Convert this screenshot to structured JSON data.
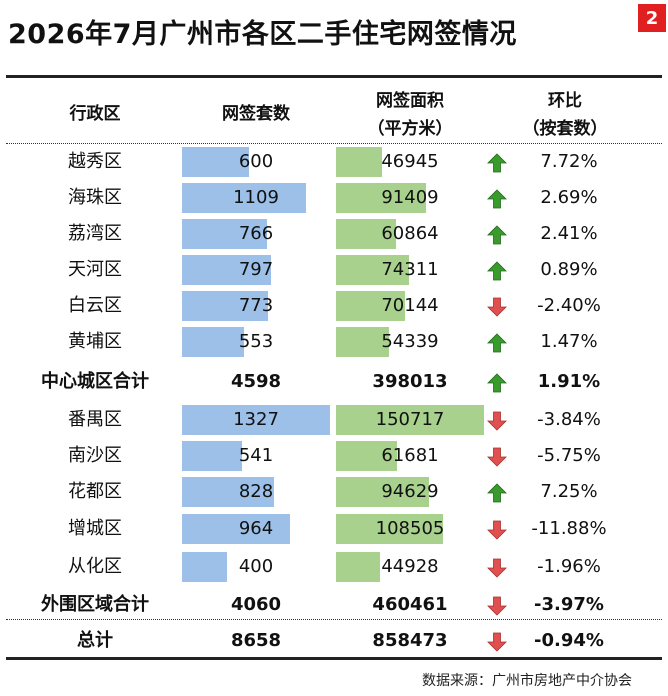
{
  "title": "2026年7月广州市各区二手住宅网签情况",
  "page_number": "2",
  "headers": {
    "district": "行政区",
    "count": "网签套数",
    "area_line1": "网签面积",
    "area_line2": "（平方米）",
    "mom_line1": "环比",
    "mom_line2": "（按套数）"
  },
  "colors": {
    "count_bar": "#9cc0e8",
    "area_bar": "#a9d18e",
    "up_arrow": "#3a9a2e",
    "down_arrow": "#e05050"
  },
  "scale": {
    "count_max": 1327,
    "area_max": 150717
  },
  "rows": [
    {
      "name": "越秀区",
      "count": "600",
      "area": "46945",
      "mom": "7.72%",
      "dir": "up",
      "bar": true,
      "bold": false
    },
    {
      "name": "海珠区",
      "count": "1109",
      "area": "91409",
      "mom": "2.69%",
      "dir": "up",
      "bar": true,
      "bold": false
    },
    {
      "name": "荔湾区",
      "count": "766",
      "area": "60864",
      "mom": "2.41%",
      "dir": "up",
      "bar": true,
      "bold": false
    },
    {
      "name": "天河区",
      "count": "797",
      "area": "74311",
      "mom": "0.89%",
      "dir": "up",
      "bar": true,
      "bold": false
    },
    {
      "name": "白云区",
      "count": "773",
      "area": "70144",
      "mom": "-2.40%",
      "dir": "down",
      "bar": true,
      "bold": false
    },
    {
      "name": "黄埔区",
      "count": "553",
      "area": "54339",
      "mom": "1.47%",
      "dir": "up",
      "bar": true,
      "bold": false
    },
    {
      "name": "中心城区合计",
      "count": "4598",
      "area": "398013",
      "mom": "1.91%",
      "dir": "up",
      "bar": false,
      "bold": true
    },
    {
      "name": "番禺区",
      "count": "1327",
      "area": "150717",
      "mom": "-3.84%",
      "dir": "down",
      "bar": true,
      "bold": false
    },
    {
      "name": "南沙区",
      "count": "541",
      "area": "61681",
      "mom": "-5.75%",
      "dir": "down",
      "bar": true,
      "bold": false
    },
    {
      "name": "花都区",
      "count": "828",
      "area": "94629",
      "mom": "7.25%",
      "dir": "up",
      "bar": true,
      "bold": false
    },
    {
      "name": "增城区",
      "count": "964",
      "area": "108505",
      "mom": "-11.88%",
      "dir": "down",
      "bar": true,
      "bold": false
    },
    {
      "name": "从化区",
      "count": "400",
      "area": "44928",
      "mom": "-1.96%",
      "dir": "down",
      "bar": true,
      "bold": false
    },
    {
      "name": "外围区域合计",
      "count": "4060",
      "area": "460461",
      "mom": "-3.97%",
      "dir": "down",
      "bar": false,
      "bold": true
    },
    {
      "name": "总计",
      "count": "8658",
      "area": "858473",
      "mom": "-0.94%",
      "dir": "down",
      "bar": false,
      "bold": true
    }
  ],
  "source": "数据来源：广州市房地产中介协会"
}
